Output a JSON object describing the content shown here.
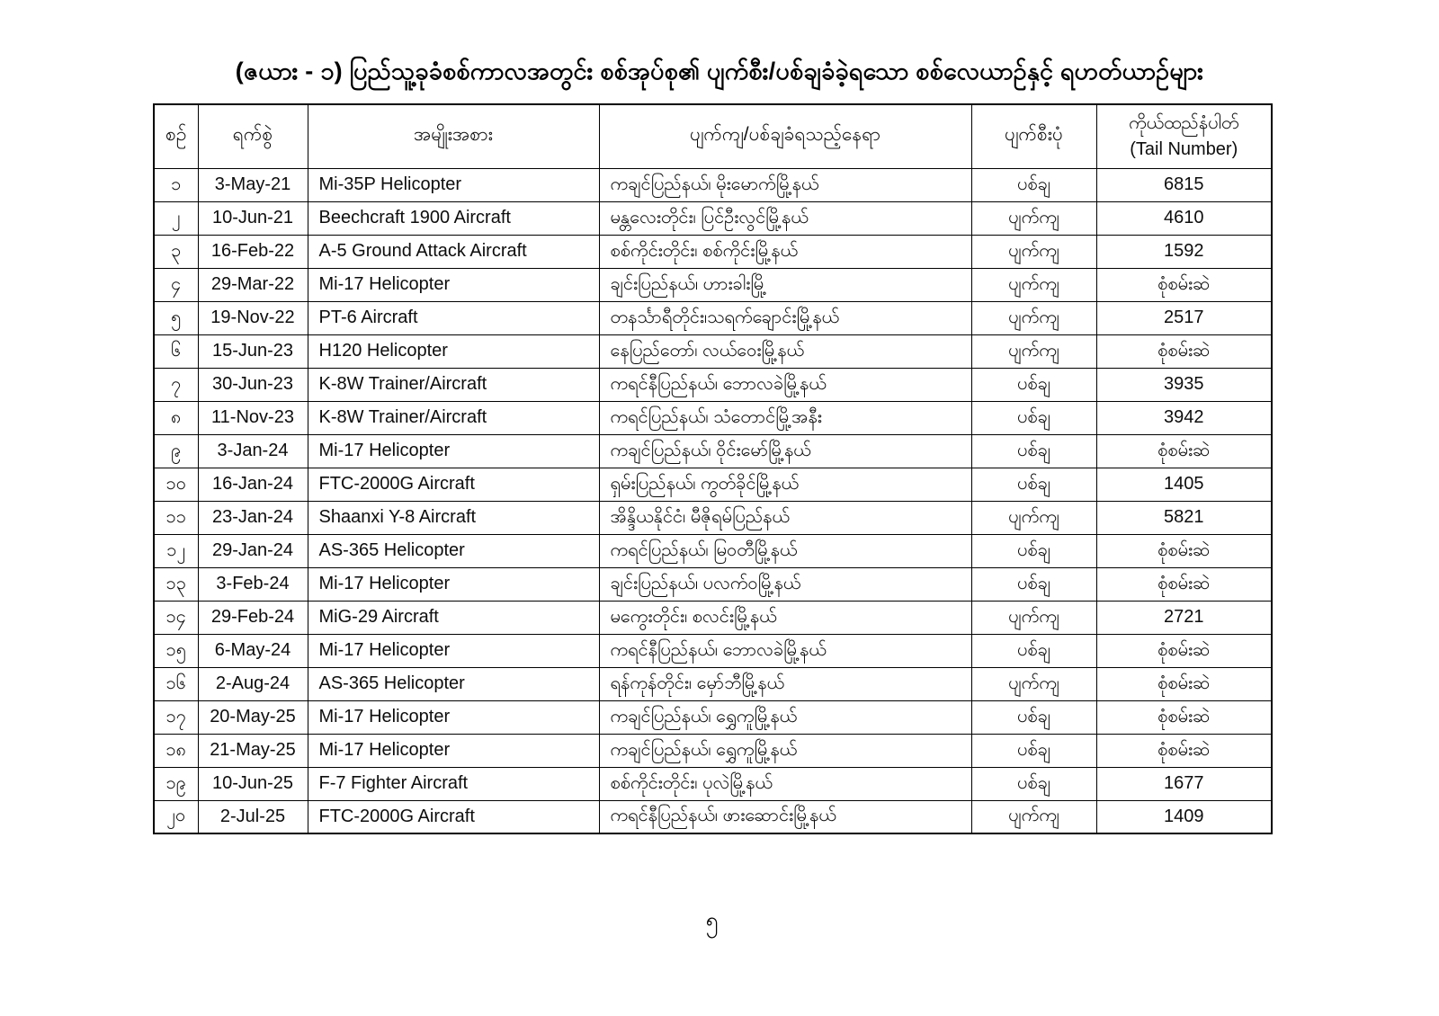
{
  "page": {
    "title": "(ဇယား - ၁) ပြည်သူ့ခုခံစစ်ကာလအတွင်း စစ်အုပ်စု၏ ပျက်စီး/ပစ်ချခံခဲ့ရသော စစ်လေယာဉ်နှင့် ရဟတ်ယာဉ်များ",
    "page_number": "၅"
  },
  "colors": {
    "text": "#000000",
    "background": "#ffffff",
    "table_border": "#000000"
  },
  "table": {
    "headers": [
      {
        "label": "စဉ်"
      },
      {
        "label": "ရက်စွဲ"
      },
      {
        "label": "အမျိုးအစား"
      },
      {
        "label": "ပျက်ကျ/ပစ်ချခံရသည့်နေရာ"
      },
      {
        "label": "ပျက်စီးပုံ"
      },
      {
        "label": "ကိုယ်ထည်နံပါတ်",
        "sublabel": "(Tail Number)"
      }
    ],
    "rows": [
      [
        "၁",
        "3-May-21",
        "Mi-35P Helicopter",
        "ကချင်ပြည်နယ်၊ မိုးမောက်မြို့နယ်",
        "ပစ်ချ",
        "6815"
      ],
      [
        "၂",
        "10-Jun-21",
        "Beechcraft 1900 Aircraft",
        "မန္တလေးတိုင်း၊ ပြင်ဦးလွင်မြို့နယ်",
        "ပျက်ကျ",
        "4610"
      ],
      [
        "၃",
        "16-Feb-22",
        "A-5 Ground Attack Aircraft",
        "စစ်ကိုင်းတိုင်း၊ စစ်ကိုင်းမြို့နယ်",
        "ပျက်ကျ",
        "1592"
      ],
      [
        "၄",
        "29-Mar-22",
        "Mi-17 Helicopter",
        "ချင်းပြည်နယ်၊ ဟားခါးမြို့",
        "ပျက်ကျ",
        "စုံစမ်းဆဲ"
      ],
      [
        "၅",
        "19-Nov-22",
        "PT-6 Aircraft",
        "တနင်္သာရီတိုင်း၊သရက်ချောင်းမြို့နယ်",
        "ပျက်ကျ",
        "2517"
      ],
      [
        "၆",
        "15-Jun-23",
        "H120 Helicopter",
        "နေပြည်တော်၊ လယ်ဝေးမြို့နယ်",
        "ပျက်ကျ",
        "စုံစမ်းဆဲ"
      ],
      [
        "၇",
        "30-Jun-23",
        "K-8W Trainer/Aircraft",
        "ကရင်နီပြည်နယ်၊ ဘောလခဲမြို့နယ်",
        "ပစ်ချ",
        "3935"
      ],
      [
        "၈",
        "11-Nov-23",
        "K-8W Trainer/Aircraft",
        "ကရင်ပြည်နယ်၊ သံတောင်မြို့အနီး",
        "ပစ်ချ",
        "3942"
      ],
      [
        "၉",
        "3-Jan-24",
        "Mi-17 Helicopter",
        "ကချင်ပြည်နယ်၊ ဝိုင်းမော်မြို့နယ်",
        "ပစ်ချ",
        "စုံစမ်းဆဲ"
      ],
      [
        "၁၀",
        "16-Jan-24",
        "FTC-2000G Aircraft",
        "ရှမ်းပြည်နယ်၊ ကွတ်ခိုင်မြို့နယ်",
        "ပစ်ချ",
        "1405"
      ],
      [
        "၁၁",
        "23-Jan-24",
        "Shaanxi Y-8 Aircraft",
        "အိန္ဒိယနိုင်ငံ၊ မီဇိုရမ်ပြည်နယ်",
        "ပျက်ကျ",
        "5821"
      ],
      [
        "၁၂",
        "29-Jan-24",
        "AS-365 Helicopter",
        "ကရင်ပြည်နယ်၊ မြဝတီမြို့နယ်",
        "ပစ်ချ",
        "စုံစမ်းဆဲ"
      ],
      [
        "၁၃",
        "3-Feb-24",
        "Mi-17 Helicopter",
        "ချင်းပြည်နယ်၊ ပလက်ဝမြို့နယ်",
        "ပစ်ချ",
        "စုံစမ်းဆဲ"
      ],
      [
        "၁၄",
        "29-Feb-24",
        "MiG-29 Aircraft",
        "မကွေးတိုင်း၊ စလင်းမြို့နယ်",
        "ပျက်ကျ",
        "2721"
      ],
      [
        "၁၅",
        "6-May-24",
        "Mi-17 Helicopter",
        "ကရင်နီပြည်နယ်၊ ဘောလခဲမြို့နယ်",
        "ပစ်ချ",
        "စုံစမ်းဆဲ"
      ],
      [
        "၁၆",
        "2-Aug-24",
        "AS-365 Helicopter",
        "ရန်ကုန်တိုင်း၊ မှော်ဘီမြို့နယ်",
        "ပျက်ကျ",
        "စုံစမ်းဆဲ"
      ],
      [
        "၁၇",
        "20-May-25",
        "Mi-17 Helicopter",
        "ကချင်ပြည်နယ်၊ ရွှေကူမြို့နယ်",
        "ပစ်ချ",
        "စုံစမ်းဆဲ"
      ],
      [
        "၁၈",
        "21-May-25",
        "Mi-17 Helicopter",
        "ကချင်ပြည်နယ်၊ ရွှေကူမြို့နယ်",
        "ပစ်ချ",
        "စုံစမ်းဆဲ"
      ],
      [
        "၁၉",
        "10-Jun-25",
        "F-7 Fighter Aircraft",
        "စစ်ကိုင်းတိုင်း၊ ပုလဲမြို့နယ်",
        "ပစ်ချ",
        "1677"
      ],
      [
        "၂၀",
        "2-Jul-25",
        "FTC-2000G Aircraft",
        "ကရင်နီပြည်နယ်၊ ဖားဆောင်းမြို့နယ်",
        "ပျက်ကျ",
        "1409"
      ]
    ]
  }
}
